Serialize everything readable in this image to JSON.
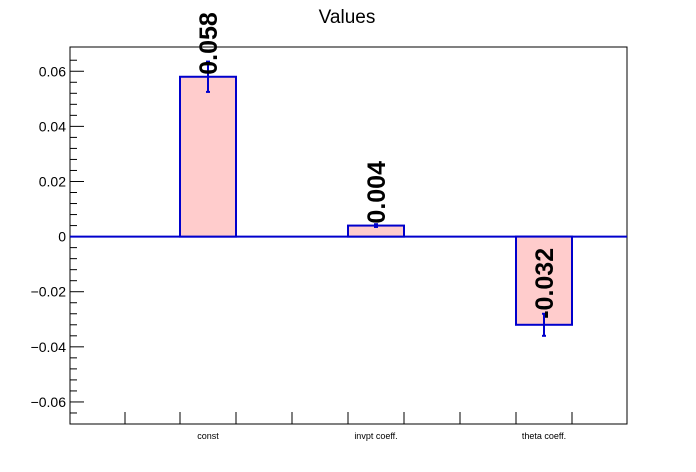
{
  "chart_data": {
    "type": "bar",
    "title": "Values",
    "categories": [
      "const",
      "invpt coeff.",
      "theta coeff."
    ],
    "values": [
      0.058,
      0.004,
      -0.032
    ],
    "errors": [
      0.0055,
      0.0005,
      0.004
    ],
    "data_labels": [
      "0.058",
      "0.004",
      "-0.032"
    ],
    "xlabel": "",
    "ylabel": "",
    "ylim": [
      -0.068,
      0.0688
    ],
    "yticks": [
      -0.06,
      -0.04,
      -0.02,
      0,
      0.02,
      0.04,
      0.06
    ],
    "ytick_labels": [
      "−0.06",
      "−0.04",
      "−0.02",
      "0",
      "0.02",
      "0.04",
      "0.06"
    ],
    "grid": false,
    "colors": {
      "bar_fill": "#ffcccc",
      "bar_edge": "#0000cc",
      "zero_line": "#0000cc",
      "axis": "#000000"
    }
  }
}
